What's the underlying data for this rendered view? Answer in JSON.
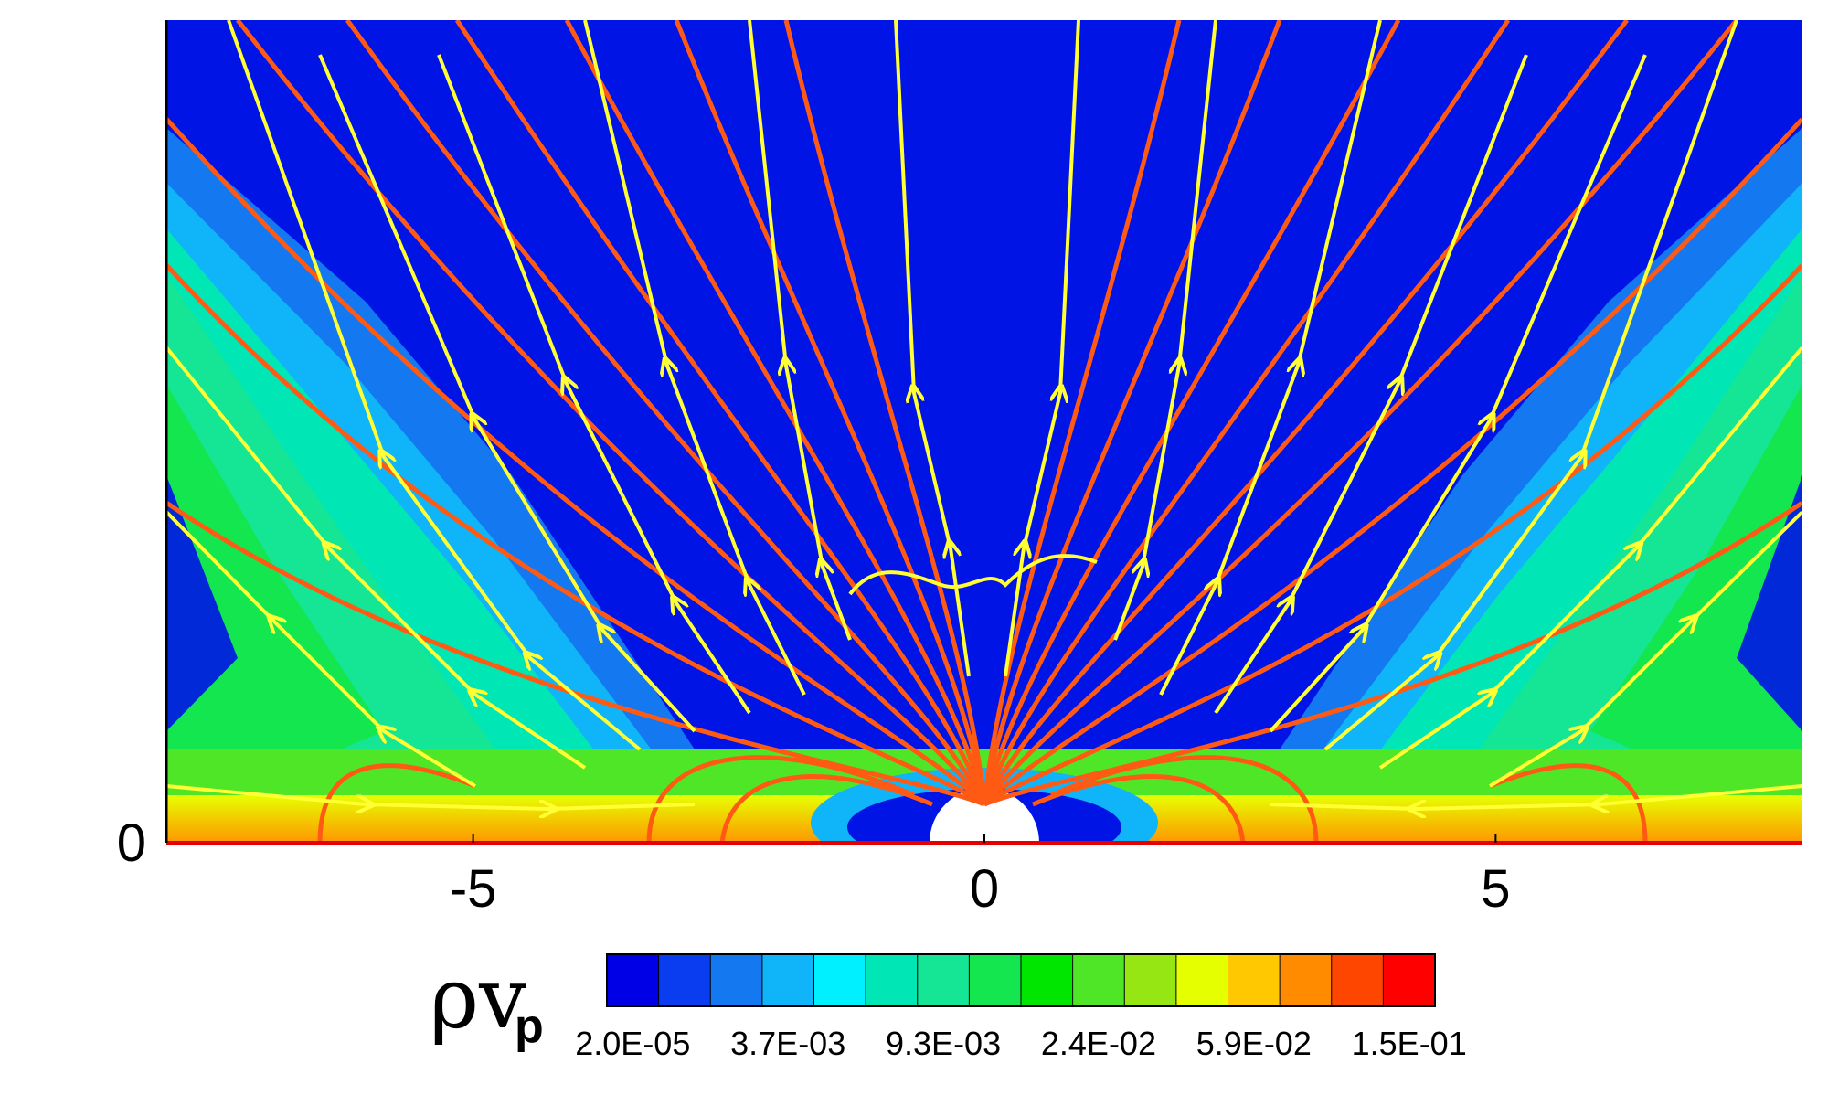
{
  "chart_data": {
    "type": "heatmap",
    "title": "",
    "description_fields": {
      "field": "contour plot of mass flux with magnetic field lines (red) and velocity streamlines (yellow with arrows) and small velocity vectors"
    },
    "xlim": [
      -8,
      8
    ],
    "ylim": [
      0,
      8
    ],
    "x_ticks": [
      "-5",
      "0",
      "5"
    ],
    "x_tick_values": [
      -5,
      0,
      5
    ],
    "y_ticks": [
      "0"
    ],
    "y_tick_values": [
      0
    ],
    "colorbar": {
      "title_main": "ρv",
      "title_sub": "p",
      "levels": 16,
      "colors": [
        "#0000e6",
        "#0a3cf0",
        "#1478f0",
        "#10b4f8",
        "#00f0ff",
        "#00e6b4",
        "#14e696",
        "#14e650",
        "#00e600",
        "#50e628",
        "#96e614",
        "#e6ff00",
        "#ffc800",
        "#ff8c00",
        "#ff4600",
        "#ff0000"
      ],
      "tick_labels": [
        "2.0E-05",
        "3.7E-03",
        "9.3E-03",
        "2.4E-02",
        "5.9E-02",
        "1.5E-01"
      ],
      "tick_level_index": [
        0,
        3,
        6,
        9,
        12,
        15
      ]
    },
    "field_line_color": "#ff5a14",
    "streamline_color": "#ffff33",
    "background_low_color": "#0014e6",
    "central_body_color": "#ffffff",
    "grid": false
  }
}
